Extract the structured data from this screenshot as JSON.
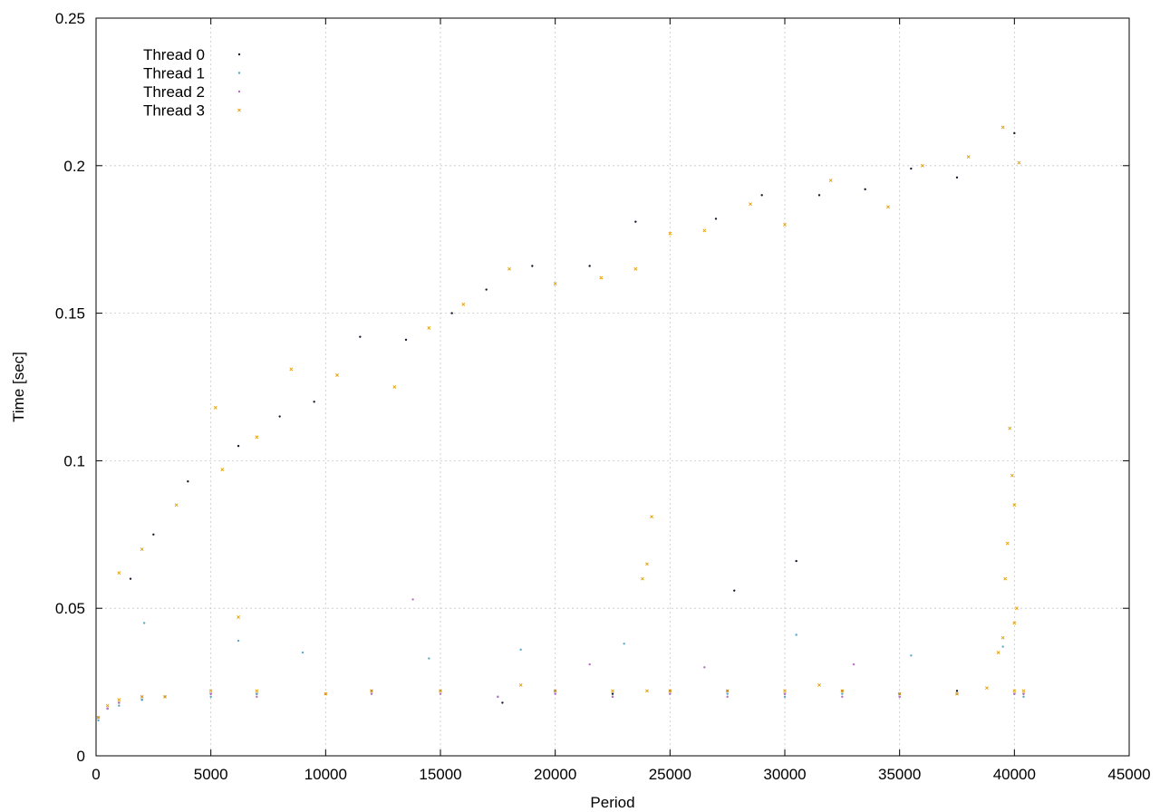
{
  "chart_data": {
    "type": "scatter",
    "title": "",
    "xlabel": "Period",
    "ylabel": "Time [sec]",
    "xlim": [
      0,
      45000
    ],
    "ylim": [
      0,
      0.25
    ],
    "x_ticks": [
      0,
      5000,
      10000,
      15000,
      20000,
      25000,
      30000,
      35000,
      40000,
      45000
    ],
    "x_tick_labels": [
      "0",
      "5000",
      "10000",
      "15000",
      "20000",
      "25000",
      "30000",
      "35000",
      "40000",
      "45000"
    ],
    "y_ticks": [
      0,
      0.05,
      0.1,
      0.15,
      0.2,
      0.25
    ],
    "y_tick_labels": [
      "0",
      "0.05",
      "0.1",
      "0.15",
      "0.2",
      "0.25"
    ],
    "grid": true,
    "legend_position": "top-left",
    "series": [
      {
        "name": "Thread 0",
        "color": "#1a1a2e",
        "marker": "dot",
        "points": [
          [
            100,
            0.013
          ],
          [
            500,
            0.016
          ],
          [
            1000,
            0.018
          ],
          [
            2000,
            0.019
          ],
          [
            3000,
            0.02
          ],
          [
            5000,
            0.021
          ],
          [
            7000,
            0.021
          ],
          [
            10000,
            0.021
          ],
          [
            12000,
            0.022
          ],
          [
            15000,
            0.022
          ],
          [
            17700,
            0.018
          ],
          [
            20000,
            0.022
          ],
          [
            22500,
            0.021
          ],
          [
            25000,
            0.022
          ],
          [
            27500,
            0.022
          ],
          [
            30000,
            0.021
          ],
          [
            32500,
            0.022
          ],
          [
            35000,
            0.021
          ],
          [
            37500,
            0.022
          ],
          [
            40000,
            0.021
          ],
          [
            40400,
            0.021
          ],
          [
            1500,
            0.06
          ],
          [
            2500,
            0.075
          ],
          [
            4000,
            0.093
          ],
          [
            6200,
            0.105
          ],
          [
            8000,
            0.115
          ],
          [
            9500,
            0.12
          ],
          [
            11500,
            0.142
          ],
          [
            13500,
            0.141
          ],
          [
            15500,
            0.15
          ],
          [
            17000,
            0.158
          ],
          [
            19000,
            0.166
          ],
          [
            21500,
            0.166
          ],
          [
            23500,
            0.181
          ],
          [
            27000,
            0.182
          ],
          [
            29000,
            0.19
          ],
          [
            31500,
            0.19
          ],
          [
            33500,
            0.192
          ],
          [
            35500,
            0.199
          ],
          [
            37500,
            0.196
          ],
          [
            40000,
            0.211
          ],
          [
            27800,
            0.056
          ],
          [
            30500,
            0.066
          ]
        ]
      },
      {
        "name": "Thread 1",
        "color": "#5aa9c8",
        "marker": "dot",
        "points": [
          [
            100,
            0.012
          ],
          [
            500,
            0.016
          ],
          [
            1000,
            0.017
          ],
          [
            2000,
            0.019
          ],
          [
            3000,
            0.02
          ],
          [
            5000,
            0.02
          ],
          [
            7000,
            0.021
          ],
          [
            10000,
            0.021
          ],
          [
            12000,
            0.021
          ],
          [
            15000,
            0.022
          ],
          [
            17500,
            0.02
          ],
          [
            20000,
            0.021
          ],
          [
            22500,
            0.02
          ],
          [
            25000,
            0.021
          ],
          [
            27500,
            0.021
          ],
          [
            30000,
            0.02
          ],
          [
            32500,
            0.021
          ],
          [
            35000,
            0.02
          ],
          [
            37500,
            0.021
          ],
          [
            40000,
            0.021
          ],
          [
            40400,
            0.02
          ],
          [
            2100,
            0.045
          ],
          [
            6200,
            0.039
          ],
          [
            9000,
            0.035
          ],
          [
            14500,
            0.033
          ],
          [
            18500,
            0.036
          ],
          [
            23000,
            0.038
          ],
          [
            30500,
            0.041
          ],
          [
            35500,
            0.034
          ],
          [
            39500,
            0.037
          ]
        ]
      },
      {
        "name": "Thread 2",
        "color": "#b870c0",
        "marker": "dot",
        "points": [
          [
            100,
            0.013
          ],
          [
            500,
            0.016
          ],
          [
            1000,
            0.018
          ],
          [
            2000,
            0.02
          ],
          [
            3000,
            0.02
          ],
          [
            5000,
            0.021
          ],
          [
            7000,
            0.02
          ],
          [
            10000,
            0.021
          ],
          [
            12000,
            0.021
          ],
          [
            15000,
            0.021
          ],
          [
            17500,
            0.02
          ],
          [
            20000,
            0.021
          ],
          [
            22500,
            0.02
          ],
          [
            25000,
            0.021
          ],
          [
            27500,
            0.02
          ],
          [
            30000,
            0.021
          ],
          [
            32500,
            0.02
          ],
          [
            35000,
            0.02
          ],
          [
            37500,
            0.021
          ],
          [
            40000,
            0.021
          ],
          [
            40400,
            0.021
          ],
          [
            13800,
            0.053
          ],
          [
            21500,
            0.031
          ],
          [
            26500,
            0.03
          ],
          [
            33000,
            0.031
          ]
        ]
      },
      {
        "name": "Thread 3",
        "color": "#e69f00",
        "marker": "cross",
        "points": [
          [
            100,
            0.013
          ],
          [
            500,
            0.017
          ],
          [
            1000,
            0.019
          ],
          [
            2000,
            0.02
          ],
          [
            3000,
            0.02
          ],
          [
            5000,
            0.022
          ],
          [
            7000,
            0.022
          ],
          [
            10000,
            0.021
          ],
          [
            12000,
            0.022
          ],
          [
            15000,
            0.022
          ],
          [
            18500,
            0.024
          ],
          [
            20000,
            0.022
          ],
          [
            22500,
            0.022
          ],
          [
            24000,
            0.022
          ],
          [
            25000,
            0.022
          ],
          [
            27500,
            0.022
          ],
          [
            30000,
            0.022
          ],
          [
            31500,
            0.024
          ],
          [
            32500,
            0.022
          ],
          [
            35000,
            0.021
          ],
          [
            37500,
            0.021
          ],
          [
            38800,
            0.023
          ],
          [
            40000,
            0.022
          ],
          [
            40400,
            0.022
          ],
          [
            1000,
            0.062
          ],
          [
            2000,
            0.07
          ],
          [
            3500,
            0.085
          ],
          [
            5500,
            0.097
          ],
          [
            7000,
            0.108
          ],
          [
            8500,
            0.131
          ],
          [
            10500,
            0.129
          ],
          [
            13000,
            0.125
          ],
          [
            14500,
            0.145
          ],
          [
            16000,
            0.153
          ],
          [
            18000,
            0.165
          ],
          [
            20000,
            0.16
          ],
          [
            22000,
            0.162
          ],
          [
            23500,
            0.165
          ],
          [
            25000,
            0.177
          ],
          [
            26500,
            0.178
          ],
          [
            28500,
            0.187
          ],
          [
            30000,
            0.18
          ],
          [
            32000,
            0.195
          ],
          [
            34500,
            0.186
          ],
          [
            36000,
            0.2
          ],
          [
            38000,
            0.203
          ],
          [
            39500,
            0.213
          ],
          [
            40200,
            0.201
          ],
          [
            24200,
            0.081
          ],
          [
            24000,
            0.065
          ],
          [
            23800,
            0.06
          ],
          [
            6200,
            0.047
          ],
          [
            5200,
            0.118
          ],
          [
            39800,
            0.111
          ],
          [
            39900,
            0.095
          ],
          [
            40000,
            0.085
          ],
          [
            39700,
            0.072
          ],
          [
            39600,
            0.06
          ],
          [
            40100,
            0.05
          ],
          [
            40000,
            0.045
          ],
          [
            39500,
            0.04
          ],
          [
            39300,
            0.035
          ]
        ]
      }
    ]
  }
}
